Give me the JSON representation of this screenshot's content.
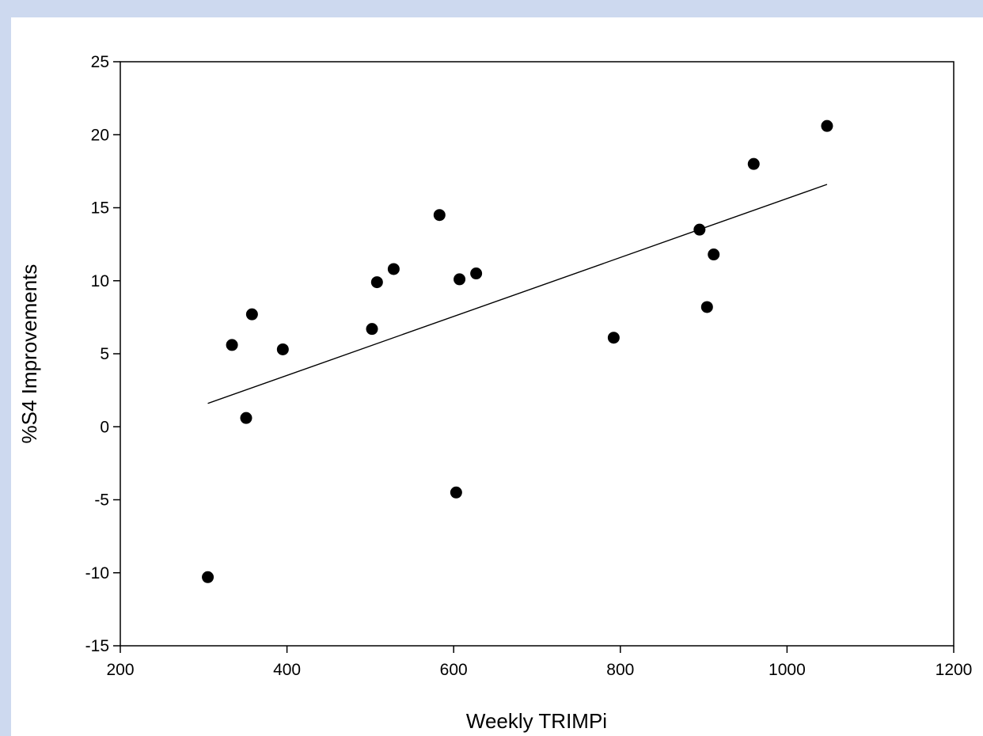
{
  "chart_data": {
    "type": "scatter",
    "xlabel": "Weekly TRIMPi",
    "ylabel": "%S4 Improvements",
    "xlim": [
      200,
      1200
    ],
    "ylim": [
      -15,
      25
    ],
    "x_ticks": [
      200,
      400,
      600,
      800,
      1000,
      1200
    ],
    "y_ticks": [
      -15,
      -10,
      -5,
      0,
      5,
      10,
      15,
      20,
      25
    ],
    "grid": false,
    "legend": "none",
    "points": [
      {
        "x": 305,
        "y": -10.3
      },
      {
        "x": 334,
        "y": 5.6
      },
      {
        "x": 351,
        "y": 0.6
      },
      {
        "x": 358,
        "y": 7.7
      },
      {
        "x": 395,
        "y": 5.3
      },
      {
        "x": 502,
        "y": 6.7
      },
      {
        "x": 508,
        "y": 9.9
      },
      {
        "x": 528,
        "y": 10.8
      },
      {
        "x": 583,
        "y": 14.5
      },
      {
        "x": 603,
        "y": -4.5
      },
      {
        "x": 607,
        "y": 10.1
      },
      {
        "x": 627,
        "y": 10.5
      },
      {
        "x": 792,
        "y": 6.1
      },
      {
        "x": 895,
        "y": 13.5
      },
      {
        "x": 904,
        "y": 8.2
      },
      {
        "x": 912,
        "y": 11.8
      },
      {
        "x": 960,
        "y": 18.0
      },
      {
        "x": 1048,
        "y": 20.6
      }
    ],
    "trendline": {
      "x": [
        305,
        1048
      ],
      "y": [
        1.6,
        16.6
      ]
    },
    "colors": {
      "points": "#000000",
      "line": "#000000",
      "axes": "#000000"
    }
  }
}
